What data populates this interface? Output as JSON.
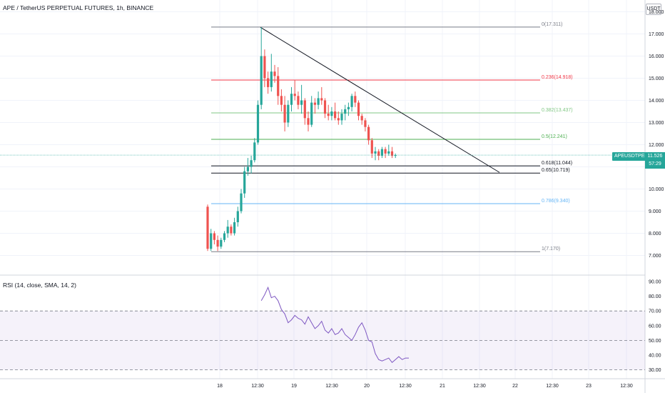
{
  "header": {
    "title": "APE / TetherUS PERPETUAL FUTURES, 1h, BINANCE",
    "currency": "USDT"
  },
  "price_scale": {
    "ticks": [
      "18.000",
      "17.000",
      "16.000",
      "15.000",
      "14.000",
      "13.000",
      "12.000",
      "11.000",
      "10.000",
      "9.000",
      "8.000",
      "7.000"
    ]
  },
  "current_price": {
    "symbol": "APEUSDTPERP",
    "value": "11.526",
    "countdown": "57:29"
  },
  "time_axis": {
    "labels": [
      "18",
      "12:30",
      "19",
      "12:30",
      "20",
      "12:30",
      "21",
      "12:30",
      "22",
      "12:30",
      "23",
      "12:30"
    ]
  },
  "rsi": {
    "label": "RSI (14, close, SMA, 14, 2)",
    "ticks": [
      "90.00",
      "80.00",
      "70.00",
      "60.00",
      "50.00",
      "40.00",
      "30.00"
    ],
    "bands": [
      70,
      50,
      30
    ]
  },
  "fib_levels": [
    {
      "label": "0(17.311)",
      "value": 17.311,
      "color": "#787b86"
    },
    {
      "label": "0.236(14.918)",
      "value": 14.918,
      "color": "#f23645"
    },
    {
      "label": "0.382(13.437)",
      "value": 13.437,
      "color": "#81c784"
    },
    {
      "label": "0.5(12.241)",
      "value": 12.241,
      "color": "#4caf50"
    },
    {
      "label": "0.618(11.044)",
      "value": 11.044,
      "color": "#131722"
    },
    {
      "label": "0.65(10.719)",
      "value": 10.719,
      "color": "#131722"
    },
    {
      "label": "0.786(9.340)",
      "value": 9.34,
      "color": "#64b5f6"
    },
    {
      "label": "1(7.170)",
      "value": 7.17,
      "color": "#787b86"
    }
  ],
  "chart_data": [
    {
      "type": "candlestick",
      "title": "APE / TetherUS PERPETUAL FUTURES, 1h, BINANCE",
      "ylim": [
        6.6,
        18.2
      ],
      "trendline": {
        "from": [
          0,
          17.3
        ],
        "to": [
          59,
          10.75
        ]
      },
      "colors": {
        "up": "#26a69a",
        "down": "#ef5350"
      },
      "candles": [
        [
          9.2,
          9.3,
          7.2,
          7.3
        ],
        [
          7.3,
          8.2,
          7.2,
          8.0
        ],
        [
          8.0,
          8.1,
          7.5,
          7.7
        ],
        [
          7.7,
          7.9,
          7.2,
          7.4
        ],
        [
          7.4,
          7.8,
          7.3,
          7.7
        ],
        [
          7.7,
          8.1,
          7.6,
          8.0
        ],
        [
          8.0,
          8.6,
          7.8,
          8.3
        ],
        [
          8.3,
          8.4,
          7.9,
          8.0
        ],
        [
          8.0,
          8.7,
          7.9,
          8.5
        ],
        [
          8.5,
          9.2,
          8.3,
          9.0
        ],
        [
          9.0,
          10.0,
          8.9,
          9.8
        ],
        [
          9.8,
          11.0,
          9.6,
          10.8
        ],
        [
          10.8,
          11.4,
          10.6,
          11.0
        ],
        [
          11.0,
          11.5,
          10.7,
          11.3
        ],
        [
          11.3,
          12.3,
          11.2,
          12.1
        ],
        [
          12.1,
          14.0,
          12.0,
          13.8
        ],
        [
          13.8,
          17.3,
          13.6,
          16.0
        ],
        [
          16.0,
          16.3,
          14.6,
          15.0
        ],
        [
          15.0,
          15.3,
          14.3,
          14.6
        ],
        [
          14.6,
          16.1,
          14.4,
          15.3
        ],
        [
          15.3,
          15.6,
          14.8,
          15.1
        ],
        [
          15.1,
          15.5,
          13.8,
          14.2
        ],
        [
          14.2,
          14.5,
          13.5,
          13.8
        ],
        [
          13.8,
          14.2,
          12.6,
          13.0
        ],
        [
          13.0,
          14.0,
          12.8,
          13.8
        ],
        [
          13.8,
          14.6,
          13.5,
          14.3
        ],
        [
          14.3,
          14.9,
          14.0,
          14.2
        ],
        [
          14.2,
          14.4,
          13.6,
          13.8
        ],
        [
          13.8,
          14.7,
          13.4,
          14.0
        ],
        [
          14.0,
          14.1,
          12.9,
          13.2
        ],
        [
          13.2,
          13.5,
          12.6,
          12.9
        ],
        [
          12.9,
          14.2,
          12.8,
          13.9
        ],
        [
          13.9,
          14.1,
          13.4,
          13.8
        ],
        [
          13.8,
          14.4,
          13.6,
          14.1
        ],
        [
          14.1,
          14.6,
          13.8,
          14.0
        ],
        [
          14.0,
          14.1,
          13.2,
          13.4
        ],
        [
          13.4,
          13.8,
          13.1,
          13.3
        ],
        [
          13.3,
          13.7,
          13.1,
          13.5
        ],
        [
          13.5,
          13.9,
          13.1,
          13.2
        ],
        [
          13.2,
          13.5,
          12.9,
          13.1
        ],
        [
          13.1,
          13.6,
          12.9,
          13.4
        ],
        [
          13.4,
          13.8,
          13.1,
          13.6
        ],
        [
          13.6,
          13.9,
          13.3,
          13.7
        ],
        [
          13.7,
          14.3,
          13.5,
          14.2
        ],
        [
          14.2,
          14.4,
          13.7,
          13.9
        ],
        [
          13.9,
          14.0,
          13.1,
          13.3
        ],
        [
          13.3,
          13.4,
          12.9,
          13.1
        ],
        [
          13.1,
          13.2,
          12.6,
          12.8
        ],
        [
          12.8,
          12.9,
          12.0,
          12.2
        ],
        [
          12.2,
          12.3,
          11.4,
          11.6
        ],
        [
          11.6,
          11.9,
          11.3,
          11.7
        ],
        [
          11.7,
          11.8,
          11.3,
          11.5
        ],
        [
          11.5,
          11.9,
          11.4,
          11.8
        ],
        [
          11.8,
          11.9,
          11.4,
          11.6
        ],
        [
          11.6,
          12.0,
          11.5,
          11.7
        ],
        [
          11.7,
          11.9,
          11.4,
          11.5
        ],
        [
          11.5,
          11.6,
          11.4,
          11.53
        ]
      ]
    },
    {
      "type": "line",
      "title": "RSI (14, close, SMA, 14, 2)",
      "ylim": [
        26,
        94
      ],
      "x_start_index": 16,
      "values": [
        77,
        81,
        86,
        79,
        80,
        77,
        71,
        68,
        62,
        64,
        67,
        65,
        64,
        61,
        66,
        62,
        58,
        60,
        63,
        57,
        55,
        58,
        54,
        55,
        58,
        54,
        52,
        50,
        54,
        59,
        62,
        57,
        50,
        49,
        41,
        37,
        36,
        37,
        38,
        35,
        37,
        39,
        37,
        38,
        38
      ]
    }
  ]
}
